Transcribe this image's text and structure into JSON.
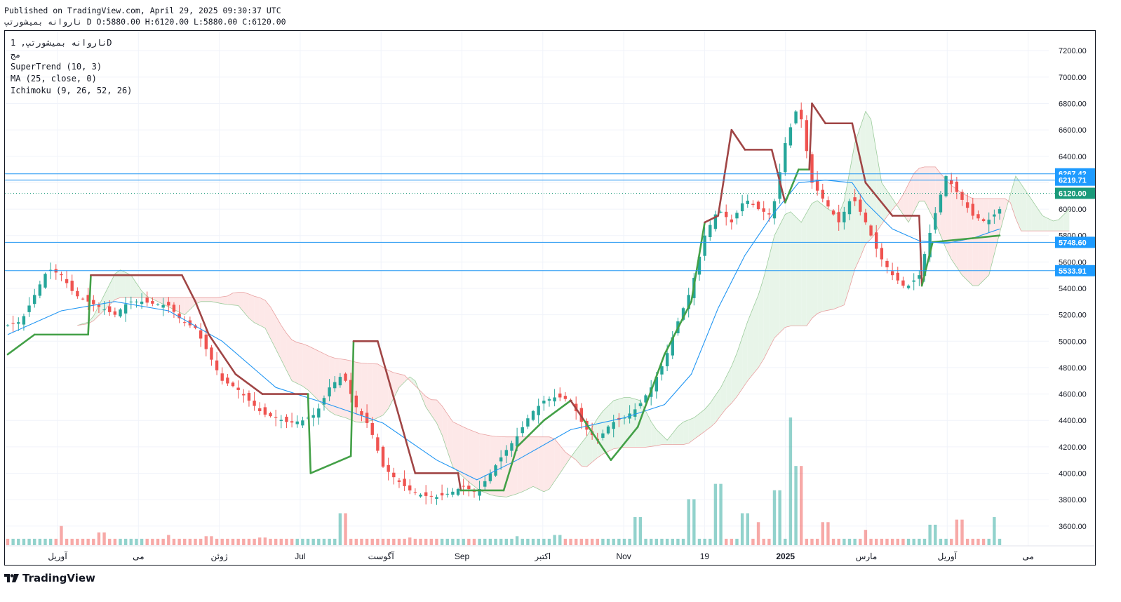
{
  "header": {
    "published": "Published on TradingView.com, April 29, 2025 09:30:37 UTC",
    "ohlc": "ناروانه بمیشورتپ D O:5880.00 H:6120.00 L:5880.00 C:6120.00"
  },
  "legend": {
    "symbol": "ناروانه بمیشورتپ, 1D",
    "exchange": "مج",
    "supertrend": "SuperTrend (10, 3)",
    "ma": "MA (25, close, 0)",
    "ichimoku": "Ichimoku (9, 26, 52, 26)"
  },
  "brand": {
    "name": "TradingView",
    "icon": "tradingview-logo-icon"
  },
  "colors": {
    "up": "#26a69a",
    "down": "#ef5350",
    "supertrend_up": "#43a047",
    "supertrend_down": "#a04545",
    "ma": "#2196f3",
    "cloud_bull": "#e8f5e9",
    "cloud_bear": "#fde8e8",
    "hline": "#2196f3",
    "price_label": "#1e9bff",
    "last_price": "#1a9a7a"
  },
  "chart_data": {
    "type": "candlestick",
    "interval": "1D",
    "ylim": [
      3450,
      7350
    ],
    "y_ticks": [
      3600,
      3800,
      4000,
      4200,
      4400,
      4600,
      4800,
      5000,
      5200,
      5400,
      5600,
      5800,
      6000,
      6200,
      6400,
      6600,
      6800,
      7000,
      7200
    ],
    "x_labels": [
      "آوریل",
      "می",
      "ژوئن",
      "Jul",
      "آگوست",
      "Sep",
      "اکتبر",
      "Nov",
      "19",
      "2025",
      "مارس",
      "آوریل",
      "می"
    ],
    "horizontal_lines": [
      {
        "value": 6267.42,
        "label": "6267.42"
      },
      {
        "value": 6219.71,
        "label": "6219.71"
      },
      {
        "value": 5748.6,
        "label": "5748.60"
      },
      {
        "value": 5533.91,
        "label": "5533.91"
      }
    ],
    "last_price": {
      "value": 6120.0,
      "label": "6120.00"
    },
    "series": [
      {
        "name": "Price (close)",
        "points": [
          [
            0,
            5120
          ],
          [
            5,
            5150
          ],
          [
            10,
            5350
          ],
          [
            15,
            5550
          ],
          [
            20,
            5500
          ],
          [
            25,
            5350
          ],
          [
            30,
            5300
          ],
          [
            35,
            5250
          ],
          [
            40,
            5200
          ],
          [
            45,
            5300
          ],
          [
            50,
            5300
          ],
          [
            55,
            5280
          ],
          [
            60,
            5270
          ],
          [
            65,
            5150
          ],
          [
            70,
            5100
          ],
          [
            75,
            4900
          ],
          [
            80,
            4700
          ],
          [
            85,
            4650
          ],
          [
            90,
            4550
          ],
          [
            95,
            4450
          ],
          [
            100,
            4420
          ],
          [
            105,
            4380
          ],
          [
            110,
            4400
          ],
          [
            115,
            4450
          ],
          [
            120,
            4650
          ],
          [
            125,
            4750
          ],
          [
            130,
            4500
          ],
          [
            135,
            4350
          ],
          [
            140,
            4050
          ],
          [
            145,
            3950
          ],
          [
            150,
            3870
          ],
          [
            155,
            3830
          ],
          [
            160,
            3820
          ],
          [
            165,
            3850
          ],
          [
            170,
            3900
          ],
          [
            175,
            3850
          ],
          [
            180,
            4000
          ],
          [
            185,
            4150
          ],
          [
            190,
            4280
          ],
          [
            195,
            4450
          ],
          [
            200,
            4550
          ],
          [
            205,
            4580
          ],
          [
            210,
            4550
          ],
          [
            215,
            4350
          ],
          [
            220,
            4250
          ],
          [
            225,
            4380
          ],
          [
            230,
            4420
          ],
          [
            235,
            4500
          ],
          [
            240,
            4650
          ],
          [
            245,
            4850
          ],
          [
            250,
            5150
          ],
          [
            255,
            5400
          ],
          [
            260,
            5800
          ],
          [
            265,
            6000
          ],
          [
            270,
            5900
          ],
          [
            275,
            6080
          ],
          [
            280,
            6000
          ],
          [
            285,
            5950
          ],
          [
            290,
            6500
          ],
          [
            295,
            6800
          ],
          [
            300,
            6200
          ],
          [
            305,
            6050
          ],
          [
            310,
            5900
          ],
          [
            315,
            6100
          ],
          [
            320,
            5900
          ],
          [
            325,
            5650
          ],
          [
            330,
            5500
          ],
          [
            335,
            5400
          ],
          [
            340,
            5500
          ],
          [
            345,
            5900
          ],
          [
            350,
            6250
          ],
          [
            355,
            6100
          ],
          [
            360,
            5950
          ],
          [
            365,
            5900
          ],
          [
            370,
            6000
          ]
        ]
      },
      {
        "name": "SuperTrend",
        "points": [
          [
            0,
            4900
          ],
          [
            10,
            5050
          ],
          [
            30,
            5050
          ],
          [
            31,
            5500
          ],
          [
            65,
            5500
          ],
          [
            70,
            5300
          ],
          [
            75,
            5050
          ],
          [
            85,
            4750
          ],
          [
            95,
            4600
          ],
          [
            112,
            4600
          ],
          [
            113,
            4000
          ],
          [
            128,
            4130
          ],
          [
            129,
            5000
          ],
          [
            138,
            5000
          ],
          [
            145,
            4500
          ],
          [
            152,
            4000
          ],
          [
            168,
            4000
          ],
          [
            169,
            3870
          ],
          [
            185,
            3870
          ],
          [
            190,
            4200
          ],
          [
            200,
            4400
          ],
          [
            210,
            4550
          ],
          [
            215,
            4400
          ],
          [
            225,
            4100
          ],
          [
            235,
            4350
          ],
          [
            245,
            4900
          ],
          [
            255,
            5300
          ],
          [
            260,
            5900
          ],
          [
            265,
            5950
          ],
          [
            270,
            6600
          ],
          [
            275,
            6450
          ],
          [
            285,
            6450
          ],
          [
            290,
            6050
          ],
          [
            295,
            6300
          ],
          [
            299,
            6300
          ],
          [
            300,
            6800
          ],
          [
            305,
            6650
          ],
          [
            315,
            6650
          ],
          [
            320,
            6200
          ],
          [
            330,
            5950
          ],
          [
            340,
            5950
          ],
          [
            341,
            5420
          ],
          [
            345,
            5750
          ],
          [
            360,
            5780
          ],
          [
            370,
            5800
          ]
        ]
      },
      {
        "name": "MA (25, close, 0)",
        "points": [
          [
            0,
            5050
          ],
          [
            20,
            5230
          ],
          [
            40,
            5300
          ],
          [
            60,
            5230
          ],
          [
            80,
            5000
          ],
          [
            100,
            4650
          ],
          [
            120,
            4520
          ],
          [
            140,
            4380
          ],
          [
            160,
            4100
          ],
          [
            175,
            3950
          ],
          [
            190,
            4100
          ],
          [
            210,
            4330
          ],
          [
            230,
            4420
          ],
          [
            245,
            4520
          ],
          [
            255,
            4750
          ],
          [
            265,
            5250
          ],
          [
            275,
            5650
          ],
          [
            285,
            5950
          ],
          [
            295,
            6200
          ],
          [
            305,
            6220
          ],
          [
            315,
            6200
          ],
          [
            320,
            6050
          ],
          [
            330,
            5850
          ],
          [
            340,
            5760
          ],
          [
            350,
            5740
          ],
          [
            360,
            5780
          ],
          [
            370,
            5850
          ]
        ]
      }
    ],
    "volume": [
      {
        "x": 20,
        "v": 0.15
      },
      {
        "x": 35,
        "v": 0.1
      },
      {
        "x": 60,
        "v": 0.08
      },
      {
        "x": 75,
        "v": 0.07
      },
      {
        "x": 95,
        "v": 0.06
      },
      {
        "x": 125,
        "v": 0.25
      },
      {
        "x": 150,
        "v": 0.06
      },
      {
        "x": 190,
        "v": 0.07
      },
      {
        "x": 205,
        "v": 0.08
      },
      {
        "x": 235,
        "v": 0.22
      },
      {
        "x": 255,
        "v": 0.36
      },
      {
        "x": 265,
        "v": 0.48
      },
      {
        "x": 275,
        "v": 0.25
      },
      {
        "x": 280,
        "v": 0.18
      },
      {
        "x": 287,
        "v": 0.43
      },
      {
        "x": 292,
        "v": 1.0
      },
      {
        "x": 295,
        "v": 0.62
      },
      {
        "x": 305,
        "v": 0.18
      },
      {
        "x": 320,
        "v": 0.12
      },
      {
        "x": 345,
        "v": 0.16
      },
      {
        "x": 355,
        "v": 0.2
      },
      {
        "x": 368,
        "v": 0.22
      }
    ]
  }
}
